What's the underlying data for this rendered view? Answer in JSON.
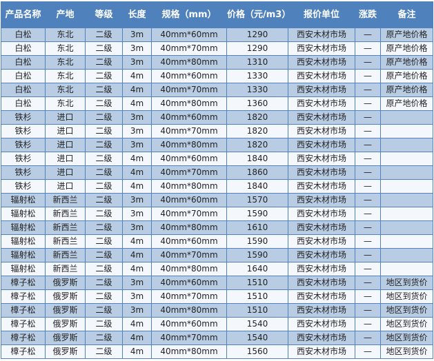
{
  "colors": {
    "header": "#4f81bd",
    "row_odd": "#b8cce4",
    "row_even": "#f4f7fc",
    "border": "#4f81bd"
  },
  "table": {
    "headers": [
      "产品名称",
      "产地",
      "等级",
      "长度",
      "规格（mm）",
      "价格（元/m3）",
      "报价单位",
      "涨跌",
      "备注"
    ],
    "rows": [
      [
        "白松",
        "东北",
        "二级",
        "3m",
        "40mm*60mm",
        "1290",
        "西安木材市场",
        "—",
        "原产地价格"
      ],
      [
        "白松",
        "东北",
        "二级",
        "3m",
        "40mm*70mm",
        "1290",
        "西安木材市场",
        "—",
        "原产地价格"
      ],
      [
        "白松",
        "东北",
        "二级",
        "3m",
        "40mm*80mm",
        "1310",
        "西安木材市场",
        "—",
        "原产地价格"
      ],
      [
        "白松",
        "东北",
        "二级",
        "4m",
        "40mm*60mm",
        "1330",
        "西安木材市场",
        "—",
        "原产地价格"
      ],
      [
        "白松",
        "东北",
        "二级",
        "4m",
        "40mm*70mm",
        "1330",
        "西安木材市场",
        "—",
        "原产地价格"
      ],
      [
        "白松",
        "东北",
        "二级",
        "4m",
        "40mm*80mm",
        "1360",
        "西安木材市场",
        "—",
        "原产地价格"
      ],
      [
        "铁杉",
        "进口",
        "二级",
        "3m",
        "40mm*60mm",
        "1820",
        "西安木材市场",
        "—",
        ""
      ],
      [
        "铁杉",
        "进口",
        "二级",
        "3m",
        "40mm*70mm",
        "1820",
        "西安木材市场",
        "—",
        ""
      ],
      [
        "铁杉",
        "进口",
        "二级",
        "3m",
        "40mm*80mm",
        "1820",
        "西安木材市场",
        "—",
        ""
      ],
      [
        "铁杉",
        "进口",
        "二级",
        "4m",
        "40mm*60mm",
        "1840",
        "西安木材市场",
        "—",
        ""
      ],
      [
        "铁杉",
        "进口",
        "二级",
        "4m",
        "40mm*70mm",
        "1860",
        "西安木材市场",
        "—",
        ""
      ],
      [
        "铁杉",
        "进口",
        "二级",
        "4m",
        "40mm*80mm",
        "1840",
        "西安木材市场",
        "—",
        ""
      ],
      [
        "辐射松",
        "新西兰",
        "二级",
        "3m",
        "40mm*60mm",
        "1570",
        "西安木材市场",
        "—",
        ""
      ],
      [
        "辐射松",
        "新西兰",
        "二级",
        "3m",
        "40mm*70mm",
        "1590",
        "西安木材市场",
        "—",
        ""
      ],
      [
        "辐射松",
        "新西兰",
        "二级",
        "3m",
        "40mm*80mm",
        "1610",
        "西安木材市场",
        "—",
        ""
      ],
      [
        "辐射松",
        "新西兰",
        "二级",
        "4m",
        "40mm*60mm",
        "1590",
        "西安木材市场",
        "—",
        ""
      ],
      [
        "辐射松",
        "新西兰",
        "二级",
        "4m",
        "40mm*70mm",
        "1590",
        "西安木材市场",
        "—",
        ""
      ],
      [
        "辐射松",
        "新西兰",
        "二级",
        "4m",
        "40mm*80mm",
        "1640",
        "西安木材市场",
        "—",
        ""
      ],
      [
        "樟子松",
        "俄罗斯",
        "二级",
        "3m",
        "40mm*60mm",
        "1510",
        "西安木材市场",
        "—",
        "地区到货价"
      ],
      [
        "樟子松",
        "俄罗斯",
        "二级",
        "3m",
        "40mm*70mm",
        "1510",
        "西安木材市场",
        "—",
        "地区到货价"
      ],
      [
        "樟子松",
        "俄罗斯",
        "二级",
        "3m",
        "40mm*80mm",
        "1510",
        "西安木材市场",
        "—",
        "地区到货价"
      ],
      [
        "樟子松",
        "俄罗斯",
        "二级",
        "4m",
        "40mm*60mm",
        "1540",
        "西安木材市场",
        "—",
        "地区到货价"
      ],
      [
        "樟子松",
        "俄罗斯",
        "二级",
        "4m",
        "40mm*70mm",
        "1540",
        "西安木材市场",
        "—",
        "地区到货价"
      ],
      [
        "樟子松",
        "俄罗斯",
        "二级",
        "4m",
        "40mm*80mm",
        "1560",
        "西安木材市场",
        "—",
        "地区到货价"
      ]
    ]
  }
}
